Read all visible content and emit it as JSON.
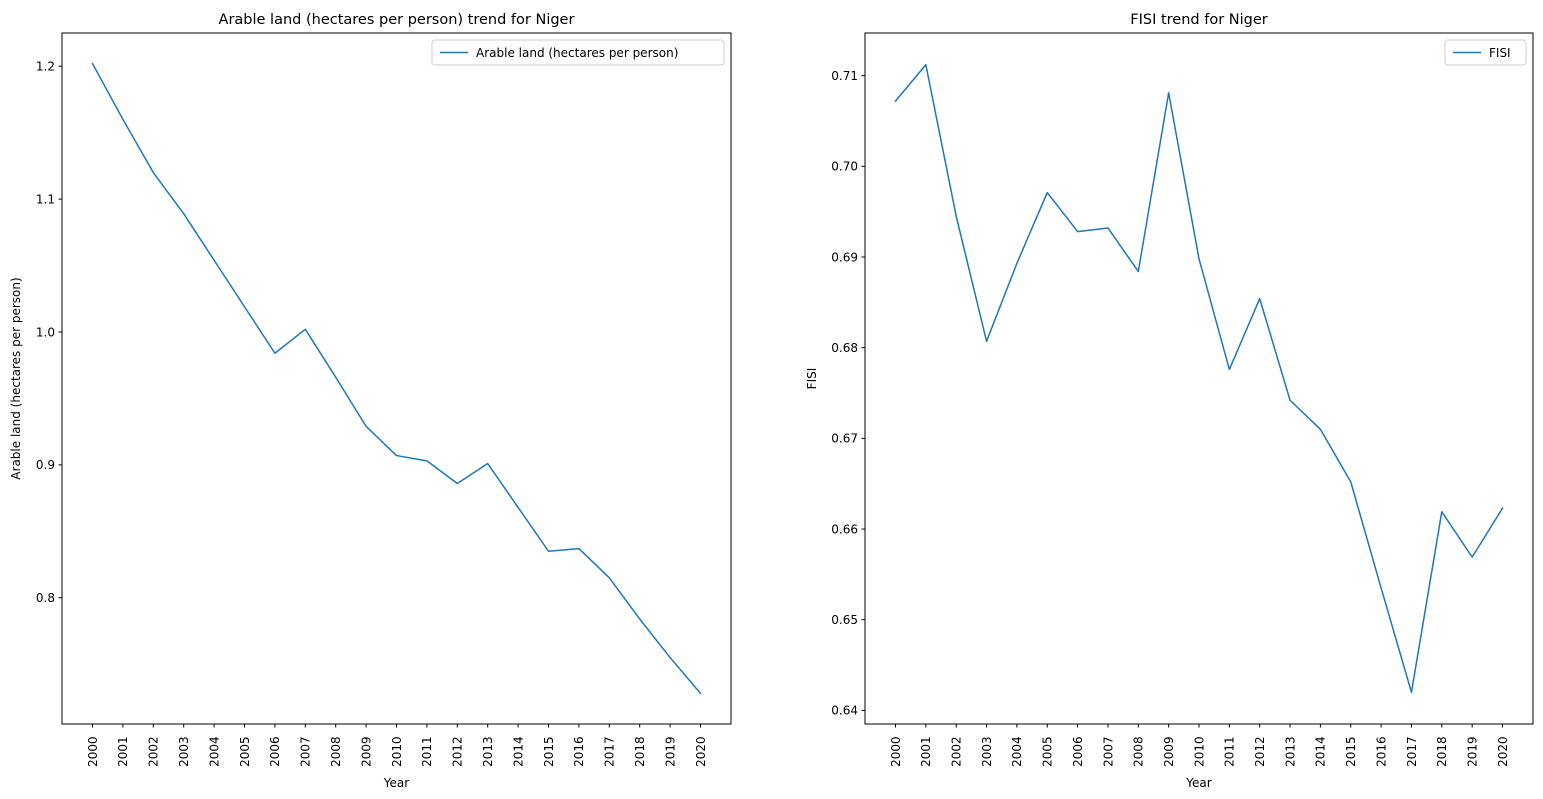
{
  "chart_data": [
    {
      "type": "line",
      "title": "Arable land (hectares per person) trend for Niger",
      "xlabel": "Year",
      "ylabel": "Arable land (hectares per person)",
      "x": [
        "2000",
        "2001",
        "2002",
        "2003",
        "2004",
        "2005",
        "2006",
        "2007",
        "2008",
        "2009",
        "2010",
        "2011",
        "2012",
        "2013",
        "2014",
        "2015",
        "2016",
        "2017",
        "2018",
        "2019",
        "2020"
      ],
      "yticks": [
        0.8,
        0.9,
        1.0,
        1.1,
        1.2
      ],
      "ytick_labels": [
        "0.8",
        "0.9",
        "1.0",
        "1.1",
        "1.2"
      ],
      "ylim": [
        0.705,
        1.225
      ],
      "legend": "top-right",
      "grid": false,
      "series": [
        {
          "name": "Arable land (hectares per person)",
          "color": "#1f77b4",
          "values": [
            1.202,
            1.16,
            1.12,
            1.089,
            1.054,
            1.019,
            0.984,
            1.002,
            0.966,
            0.929,
            0.907,
            0.903,
            0.886,
            0.901,
            0.868,
            0.835,
            0.837,
            0.815,
            0.784,
            0.755,
            0.728
          ]
        }
      ]
    },
    {
      "type": "line",
      "title": "FISI trend for Niger",
      "xlabel": "Year",
      "ylabel": "FISI",
      "x": [
        "2000",
        "2001",
        "2002",
        "2003",
        "2004",
        "2005",
        "2006",
        "2007",
        "2008",
        "2009",
        "2010",
        "2011",
        "2012",
        "2013",
        "2014",
        "2015",
        "2016",
        "2017",
        "2018",
        "2019",
        "2020"
      ],
      "yticks": [
        0.64,
        0.65,
        0.66,
        0.67,
        0.68,
        0.69,
        0.7,
        0.71
      ],
      "ytick_labels": [
        "0.64",
        "0.65",
        "0.66",
        "0.67",
        "0.68",
        "0.69",
        "0.70",
        "0.71"
      ],
      "ylim": [
        0.6385,
        0.7147
      ],
      "legend": "top-right",
      "grid": false,
      "series": [
        {
          "name": "FISI",
          "color": "#1f77b4",
          "values": [
            0.7072,
            0.7112,
            0.6945,
            0.6807,
            0.6893,
            0.6971,
            0.6928,
            0.6932,
            0.6884,
            0.7081,
            0.6898,
            0.6776,
            0.6854,
            0.6742,
            0.671,
            0.6652,
            0.6535,
            0.642,
            0.6619,
            0.6569,
            0.6623
          ]
        }
      ]
    }
  ]
}
